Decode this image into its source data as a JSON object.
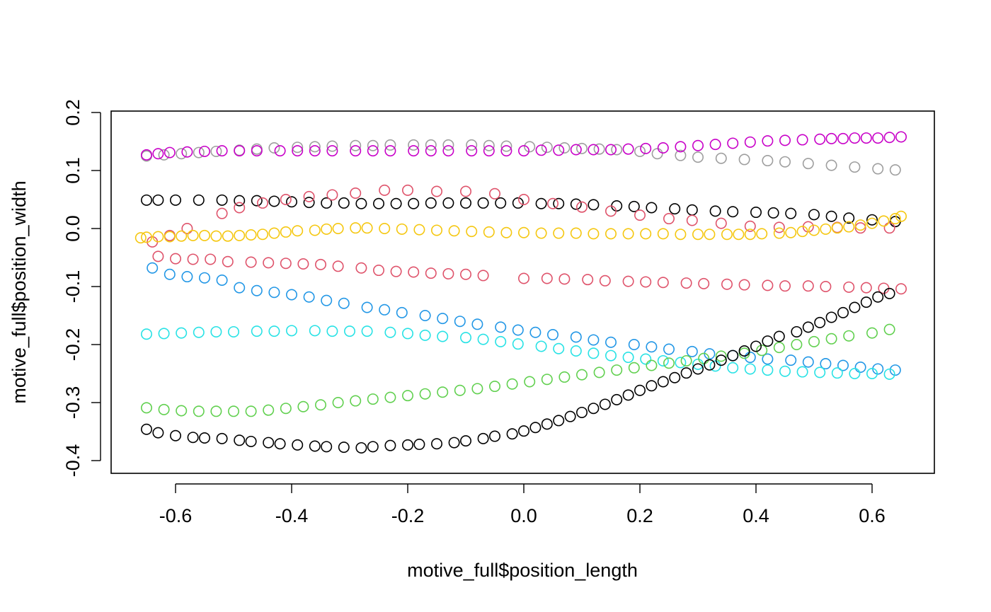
{
  "chart_data": {
    "type": "scatter",
    "title": "",
    "xlabel": "motive_full$position_length",
    "ylabel": "motive_full$position_width",
    "xlim": [
      -0.7,
      0.7
    ],
    "ylim": [
      -0.42,
      0.2
    ],
    "x_ticks": [
      -0.6,
      -0.4,
      -0.2,
      0.0,
      0.2,
      0.4,
      0.6
    ],
    "x_tick_labels": [
      "-0.6",
      "-0.4",
      "-0.2",
      "0.0",
      "0.2",
      "0.4",
      "0.6"
    ],
    "y_ticks": [
      -0.4,
      -0.3,
      -0.2,
      -0.1,
      0.0,
      0.1,
      0.2
    ],
    "y_tick_labels": [
      "-0.4",
      "-0.3",
      "-0.2",
      "-0.1",
      "0.0",
      "0.1",
      "0.2"
    ],
    "grid": false,
    "legend": "none",
    "marker": "open-circle",
    "series": [
      {
        "color": "#000000",
        "x": [
          -0.65,
          -0.63,
          -0.6,
          -0.56,
          -0.52,
          -0.49,
          -0.46,
          -0.43,
          -0.4,
          -0.37,
          -0.34,
          -0.31,
          -0.28,
          -0.25,
          -0.22,
          -0.19,
          -0.16,
          -0.13,
          -0.1,
          -0.07,
          -0.04,
          -0.01,
          0.03,
          0.06,
          0.09,
          0.12,
          0.16,
          0.19,
          0.22,
          0.26,
          0.29,
          0.33,
          0.36,
          0.4,
          0.43,
          0.46,
          0.5,
          0.53,
          0.56,
          0.6,
          0.64
        ],
        "y": [
          0.049,
          0.049,
          0.049,
          0.049,
          0.049,
          0.048,
          0.048,
          0.047,
          0.046,
          0.045,
          0.044,
          0.044,
          0.043,
          0.043,
          0.043,
          0.043,
          0.044,
          0.044,
          0.044,
          0.044,
          0.044,
          0.044,
          0.043,
          0.043,
          0.042,
          0.041,
          0.039,
          0.038,
          0.036,
          0.034,
          0.032,
          0.03,
          0.029,
          0.028,
          0.027,
          0.026,
          0.024,
          0.021,
          0.018,
          0.015,
          0.012
        ]
      },
      {
        "color": "#9e9e9e",
        "x": [
          -0.65,
          -0.62,
          -0.59,
          -0.56,
          -0.53,
          -0.49,
          -0.46,
          -0.43,
          -0.39,
          -0.36,
          -0.33,
          -0.29,
          -0.26,
          -0.23,
          -0.19,
          -0.16,
          -0.13,
          -0.09,
          -0.06,
          -0.03,
          0.01,
          0.04,
          0.07,
          0.1,
          0.13,
          0.16,
          0.2,
          0.23,
          0.27,
          0.3,
          0.34,
          0.38,
          0.42,
          0.45,
          0.49,
          0.53,
          0.57,
          0.61,
          0.64
        ],
        "y": [
          0.125,
          0.127,
          0.129,
          0.131,
          0.133,
          0.135,
          0.137,
          0.139,
          0.14,
          0.141,
          0.142,
          0.143,
          0.143,
          0.144,
          0.144,
          0.144,
          0.144,
          0.144,
          0.143,
          0.142,
          0.141,
          0.14,
          0.139,
          0.138,
          0.137,
          0.136,
          0.133,
          0.129,
          0.126,
          0.123,
          0.121,
          0.119,
          0.117,
          0.115,
          0.112,
          0.109,
          0.106,
          0.103,
          0.101
        ]
      },
      {
        "color": "#c800c8",
        "x": [
          -0.65,
          -0.63,
          -0.61,
          -0.58,
          -0.55,
          -0.52,
          -0.49,
          -0.46,
          -0.42,
          -0.39,
          -0.36,
          -0.33,
          -0.29,
          -0.26,
          -0.23,
          -0.19,
          -0.16,
          -0.13,
          -0.09,
          -0.06,
          -0.03,
          0.0,
          0.03,
          0.06,
          0.09,
          0.12,
          0.15,
          0.18,
          0.21,
          0.24,
          0.27,
          0.3,
          0.33,
          0.36,
          0.39,
          0.42,
          0.45,
          0.48,
          0.51,
          0.53,
          0.55,
          0.57,
          0.59,
          0.61,
          0.63,
          0.65
        ],
        "y": [
          0.127,
          0.129,
          0.131,
          0.132,
          0.133,
          0.134,
          0.134,
          0.134,
          0.134,
          0.134,
          0.134,
          0.134,
          0.134,
          0.134,
          0.134,
          0.134,
          0.134,
          0.134,
          0.134,
          0.134,
          0.134,
          0.134,
          0.135,
          0.135,
          0.136,
          0.136,
          0.136,
          0.137,
          0.138,
          0.139,
          0.141,
          0.143,
          0.145,
          0.147,
          0.149,
          0.151,
          0.152,
          0.153,
          0.154,
          0.155,
          0.155,
          0.156,
          0.156,
          0.156,
          0.157,
          0.158
        ]
      },
      {
        "color": "#df536b",
        "x": [
          -0.52,
          -0.49,
          -0.45,
          -0.41,
          -0.37,
          -0.33,
          -0.29,
          -0.24,
          -0.2,
          -0.15,
          -0.1,
          -0.05,
          0.0,
          0.05,
          0.1,
          0.15,
          0.2,
          0.25,
          0.29,
          0.34,
          0.39,
          0.44,
          0.49,
          0.54,
          0.58,
          0.63
        ],
        "y": [
          0.026,
          0.036,
          0.044,
          0.05,
          0.055,
          0.058,
          0.061,
          0.066,
          0.066,
          0.064,
          0.064,
          0.06,
          0.05,
          0.043,
          0.037,
          0.03,
          0.023,
          0.017,
          0.014,
          0.009,
          0.004,
          0.002,
          0.003,
          0.002,
          0.001,
          0.001
        ]
      },
      {
        "color": "#df536b",
        "x": [
          -0.64,
          -0.63,
          -0.6,
          -0.57,
          -0.54,
          -0.51,
          -0.47,
          -0.44,
          -0.41,
          -0.38,
          -0.35,
          -0.32,
          -0.28,
          -0.25,
          -0.22,
          -0.19,
          -0.16,
          -0.13,
          -0.1,
          -0.07,
          0.0,
          0.04,
          0.07,
          0.11,
          0.14,
          0.18,
          0.21,
          0.24,
          0.28,
          0.31,
          0.35,
          0.38,
          0.42,
          0.45,
          0.49,
          0.52,
          0.56,
          0.59,
          0.62,
          0.65
        ],
        "y": [
          -0.023,
          -0.048,
          -0.052,
          -0.053,
          -0.053,
          -0.057,
          -0.058,
          -0.059,
          -0.06,
          -0.061,
          -0.062,
          -0.065,
          -0.068,
          -0.072,
          -0.074,
          -0.075,
          -0.077,
          -0.078,
          -0.079,
          -0.081,
          -0.086,
          -0.086,
          -0.087,
          -0.088,
          -0.09,
          -0.091,
          -0.092,
          -0.093,
          -0.094,
          -0.095,
          -0.096,
          -0.097,
          -0.098,
          -0.099,
          -0.099,
          -0.1,
          -0.101,
          -0.102,
          -0.103,
          -0.104
        ]
      },
      {
        "color": "#df536b",
        "x": [
          -0.61,
          -0.58
        ],
        "y": [
          -0.012,
          0.0
        ]
      },
      {
        "color": "#f5c710",
        "x": [
          -0.66,
          -0.65,
          -0.63,
          -0.61,
          -0.59,
          -0.57,
          -0.55,
          -0.53,
          -0.51,
          -0.49,
          -0.47,
          -0.45,
          -0.43,
          -0.41,
          -0.39,
          -0.36,
          -0.34,
          -0.32,
          -0.29,
          -0.27,
          -0.24,
          -0.21,
          -0.18,
          -0.15,
          -0.12,
          -0.09,
          -0.06,
          -0.03,
          0.0,
          0.03,
          0.06,
          0.09,
          0.12,
          0.15,
          0.18,
          0.21,
          0.24,
          0.27,
          0.3,
          0.32,
          0.35,
          0.37,
          0.39,
          0.41,
          0.44,
          0.46,
          0.48,
          0.5,
          0.52,
          0.54,
          0.56,
          0.58,
          0.6,
          0.62,
          0.64,
          0.65
        ],
        "y": [
          -0.016,
          -0.015,
          -0.014,
          -0.014,
          -0.013,
          -0.012,
          -0.012,
          -0.013,
          -0.013,
          -0.012,
          -0.011,
          -0.01,
          -0.008,
          -0.006,
          -0.004,
          -0.003,
          -0.001,
          0.0,
          0.001,
          0.001,
          0.0,
          -0.001,
          -0.002,
          -0.003,
          -0.004,
          -0.005,
          -0.006,
          -0.007,
          -0.007,
          -0.008,
          -0.008,
          -0.008,
          -0.009,
          -0.009,
          -0.009,
          -0.009,
          -0.009,
          -0.01,
          -0.01,
          -0.01,
          -0.01,
          -0.01,
          -0.01,
          -0.009,
          -0.008,
          -0.007,
          -0.005,
          -0.003,
          -0.001,
          0.001,
          0.003,
          0.006,
          0.009,
          0.013,
          0.017,
          0.021
        ]
      },
      {
        "color": "#2297e6",
        "x": [
          -0.64,
          -0.61,
          -0.58,
          -0.55,
          -0.52,
          -0.49,
          -0.46,
          -0.43,
          -0.4,
          -0.37,
          -0.34,
          -0.31,
          -0.27,
          -0.24,
          -0.21,
          -0.17,
          -0.14,
          -0.11,
          -0.08,
          -0.04,
          -0.01,
          0.02,
          0.05,
          0.09,
          0.12,
          0.15,
          0.19,
          0.22,
          0.25,
          0.29,
          0.32,
          0.36,
          0.39,
          0.42,
          0.46,
          0.49,
          0.52,
          0.55,
          0.58,
          0.61,
          0.64
        ],
        "y": [
          -0.068,
          -0.079,
          -0.083,
          -0.085,
          -0.089,
          -0.102,
          -0.107,
          -0.11,
          -0.114,
          -0.118,
          -0.124,
          -0.129,
          -0.136,
          -0.14,
          -0.145,
          -0.15,
          -0.155,
          -0.16,
          -0.165,
          -0.17,
          -0.175,
          -0.179,
          -0.183,
          -0.187,
          -0.192,
          -0.196,
          -0.2,
          -0.204,
          -0.208,
          -0.212,
          -0.216,
          -0.219,
          -0.222,
          -0.225,
          -0.227,
          -0.23,
          -0.233,
          -0.236,
          -0.239,
          -0.242,
          -0.244
        ]
      },
      {
        "color": "#28e2e5",
        "x": [
          -0.65,
          -0.62,
          -0.59,
          -0.56,
          -0.53,
          -0.5,
          -0.46,
          -0.43,
          -0.4,
          -0.36,
          -0.33,
          -0.3,
          -0.27,
          -0.23,
          -0.2,
          -0.17,
          -0.14,
          -0.1,
          -0.07,
          -0.04,
          -0.01,
          0.03,
          0.06,
          0.09,
          0.12,
          0.15,
          0.18,
          0.21,
          0.24,
          0.27,
          0.3,
          0.33,
          0.36,
          0.39,
          0.42,
          0.45,
          0.48,
          0.51,
          0.54,
          0.57,
          0.6,
          0.63
        ],
        "y": [
          -0.182,
          -0.181,
          -0.18,
          -0.179,
          -0.178,
          -0.178,
          -0.177,
          -0.177,
          -0.176,
          -0.176,
          -0.177,
          -0.177,
          -0.177,
          -0.179,
          -0.181,
          -0.184,
          -0.186,
          -0.188,
          -0.191,
          -0.195,
          -0.199,
          -0.203,
          -0.207,
          -0.211,
          -0.215,
          -0.219,
          -0.222,
          -0.225,
          -0.228,
          -0.231,
          -0.234,
          -0.237,
          -0.24,
          -0.242,
          -0.244,
          -0.246,
          -0.247,
          -0.248,
          -0.249,
          -0.25,
          -0.25,
          -0.251
        ]
      },
      {
        "color": "#61d04f",
        "x": [
          -0.65,
          -0.62,
          -0.59,
          -0.56,
          -0.53,
          -0.5,
          -0.47,
          -0.44,
          -0.41,
          -0.38,
          -0.35,
          -0.32,
          -0.29,
          -0.26,
          -0.23,
          -0.2,
          -0.17,
          -0.14,
          -0.11,
          -0.08,
          -0.05,
          -0.02,
          0.01,
          0.04,
          0.07,
          0.1,
          0.13,
          0.16,
          0.19,
          0.22,
          0.25,
          0.28,
          0.31,
          0.34,
          0.38,
          0.41,
          0.44,
          0.47,
          0.5,
          0.53,
          0.56,
          0.6,
          0.63
        ],
        "y": [
          -0.309,
          -0.312,
          -0.314,
          -0.315,
          -0.315,
          -0.315,
          -0.315,
          -0.313,
          -0.31,
          -0.307,
          -0.304,
          -0.3,
          -0.297,
          -0.294,
          -0.291,
          -0.288,
          -0.285,
          -0.282,
          -0.279,
          -0.276,
          -0.272,
          -0.268,
          -0.264,
          -0.26,
          -0.256,
          -0.252,
          -0.248,
          -0.244,
          -0.24,
          -0.236,
          -0.232,
          -0.228,
          -0.224,
          -0.22,
          -0.215,
          -0.21,
          -0.205,
          -0.2,
          -0.195,
          -0.19,
          -0.185,
          -0.18,
          -0.174
        ]
      },
      {
        "color": "#000000",
        "x": [
          -0.65,
          -0.63,
          -0.6,
          -0.57,
          -0.55,
          -0.52,
          -0.49,
          -0.47,
          -0.44,
          -0.42,
          -0.39,
          -0.36,
          -0.34,
          -0.31,
          -0.28,
          -0.26,
          -0.23,
          -0.2,
          -0.18,
          -0.15,
          -0.12,
          -0.1,
          -0.07,
          -0.05,
          -0.02,
          0.0,
          0.02,
          0.04,
          0.06,
          0.08,
          0.1,
          0.12,
          0.14,
          0.16,
          0.18,
          0.2,
          0.22,
          0.24,
          0.26,
          0.28,
          0.3,
          0.32,
          0.34,
          0.36,
          0.38,
          0.4,
          0.42,
          0.44,
          0.47,
          0.49,
          0.51,
          0.53,
          0.55,
          0.57,
          0.59,
          0.61,
          0.63
        ],
        "y": [
          -0.346,
          -0.352,
          -0.357,
          -0.36,
          -0.361,
          -0.362,
          -0.365,
          -0.367,
          -0.369,
          -0.371,
          -0.373,
          -0.375,
          -0.376,
          -0.377,
          -0.378,
          -0.376,
          -0.374,
          -0.373,
          -0.372,
          -0.371,
          -0.369,
          -0.366,
          -0.362,
          -0.358,
          -0.354,
          -0.349,
          -0.343,
          -0.337,
          -0.331,
          -0.324,
          -0.317,
          -0.31,
          -0.303,
          -0.295,
          -0.287,
          -0.279,
          -0.271,
          -0.264,
          -0.257,
          -0.249,
          -0.242,
          -0.235,
          -0.227,
          -0.219,
          -0.211,
          -0.203,
          -0.194,
          -0.186,
          -0.178,
          -0.17,
          -0.162,
          -0.153,
          -0.145,
          -0.136,
          -0.127,
          -0.118,
          -0.112
        ]
      }
    ]
  }
}
